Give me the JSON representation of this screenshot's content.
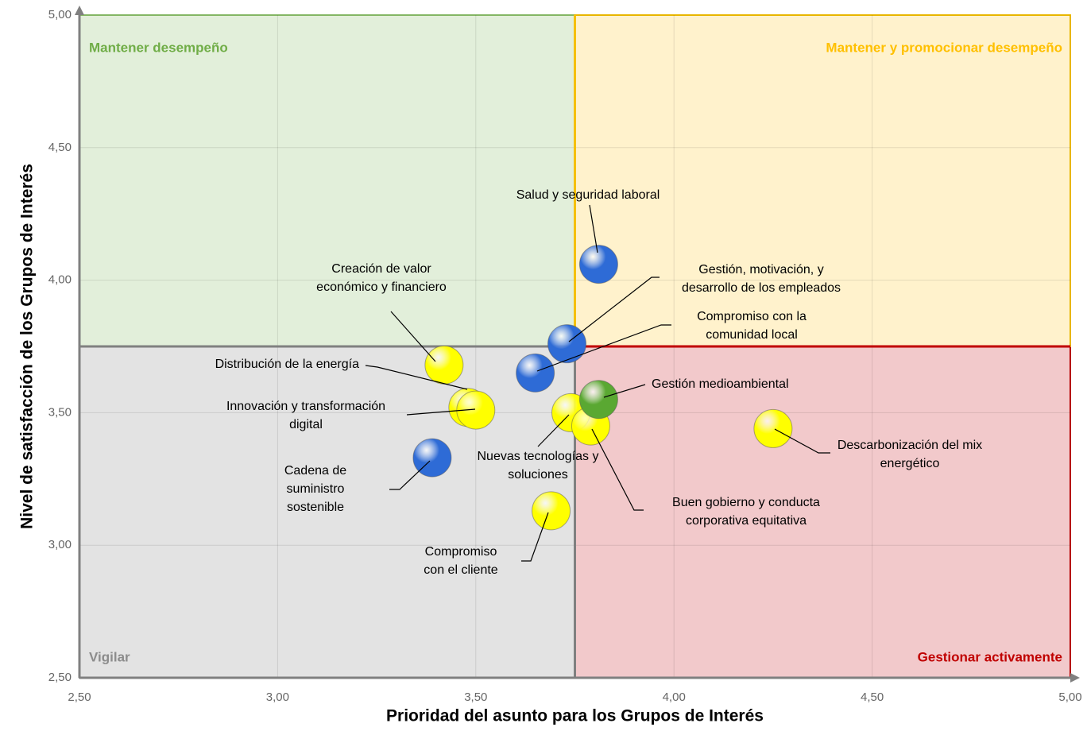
{
  "chart_data": {
    "type": "scatter",
    "xlabel": "Prioridad del asunto para los Grupos de Interés",
    "ylabel": "Nivel de satisfacción de los Grupos de Interés",
    "xlim": [
      2.5,
      5.0
    ],
    "ylim": [
      2.5,
      5.0
    ],
    "xticks": [
      {
        "value": 2.5,
        "label": "2,50"
      },
      {
        "value": 3.0,
        "label": "3,00"
      },
      {
        "value": 3.5,
        "label": "3,50"
      },
      {
        "value": 4.0,
        "label": "4,00"
      },
      {
        "value": 4.5,
        "label": "4,50"
      },
      {
        "value": 5.0,
        "label": "5,00"
      }
    ],
    "yticks": [
      {
        "value": 2.5,
        "label": "2,50"
      },
      {
        "value": 3.0,
        "label": "3,00"
      },
      {
        "value": 3.5,
        "label": "3,50"
      },
      {
        "value": 4.0,
        "label": "4,00"
      },
      {
        "value": 4.5,
        "label": "4,50"
      },
      {
        "value": 5.0,
        "label": "5,00"
      }
    ],
    "grid": true,
    "divider": {
      "x": 3.75,
      "y": 3.75
    },
    "quadrants": {
      "top_left": {
        "label": "Mantener desempeño",
        "color": "#70ad47",
        "fill": "#e2efda",
        "border": "#8cc06a"
      },
      "top_right": {
        "label": "Mantener y promocionar desempeño",
        "color": "#ffc000",
        "fill": "#fff2cc",
        "border": "#f5c000"
      },
      "bottom_left": {
        "label": "Vigilar",
        "color": "#8c8c8c",
        "fill": "#e3e3e3",
        "border": "#808080"
      },
      "bottom_right": {
        "label": "Gestionar activamente",
        "color": "#c00000",
        "fill": "#f2c9cb",
        "border": "#c00000"
      }
    },
    "points": [
      {
        "label": [
          "Salud y seguridad laboral"
        ],
        "x": 3.81,
        "y": 4.06,
        "color": "#2e6bd6"
      },
      {
        "label": [
          "Gestión, motivación, y",
          "desarrollo de los empleados"
        ],
        "x": 3.73,
        "y": 3.76,
        "color": "#2e6bd6"
      },
      {
        "label": [
          "Compromiso con la",
          "comunidad local"
        ],
        "x": 3.65,
        "y": 3.65,
        "color": "#2e6bd6"
      },
      {
        "label": [
          "Creación de valor",
          "económico y financiero"
        ],
        "x": 3.42,
        "y": 3.68,
        "color": "#ffff00"
      },
      {
        "label": [
          "Distribución de la energía"
        ],
        "x": 3.48,
        "y": 3.52,
        "color": "#ffff00"
      },
      {
        "label": [
          "Innovación y transformación",
          "digital"
        ],
        "x": 3.5,
        "y": 3.51,
        "color": "#ffff00"
      },
      {
        "label": [
          "Cadena de",
          "suministro",
          "sostenible"
        ],
        "x": 3.39,
        "y": 3.33,
        "color": "#2e6bd6"
      },
      {
        "label": [
          "Nuevas tecnologías y",
          "soluciones"
        ],
        "x": 3.74,
        "y": 3.5,
        "color": "#ffff00"
      },
      {
        "label": [
          "Buen gobierno y conducta",
          "corporativa equitativa"
        ],
        "x": 3.79,
        "y": 3.45,
        "color": "#ffff00"
      },
      {
        "label": [
          "Gestión medioambiental"
        ],
        "x": 3.81,
        "y": 3.55,
        "color": "#5aa832"
      },
      {
        "label": [
          "Descarbonización del mix",
          "energético"
        ],
        "x": 4.25,
        "y": 3.44,
        "color": "#ffff00"
      },
      {
        "label": [
          "Compromiso",
          "con el cliente"
        ],
        "x": 3.69,
        "y": 3.13,
        "color": "#ffff00"
      }
    ]
  }
}
